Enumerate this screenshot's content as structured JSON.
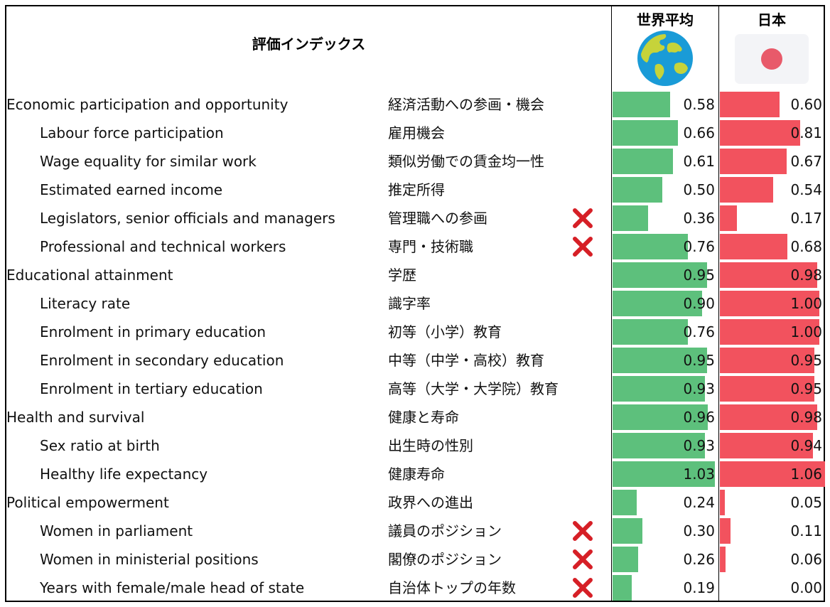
{
  "header": {
    "index_title": "評価インデックス",
    "world_label": "世界平均",
    "japan_label": "日本",
    "world_icon": "globe-icon",
    "japan_icon": "japan-flag-icon"
  },
  "colors": {
    "world": "#5dc07c",
    "japan": "#f2525e",
    "flag_circle": "#e85a6a",
    "x_mark": "#d61f26",
    "category_bg": "#efefef"
  },
  "chart_data": {
    "type": "table",
    "bar_max": 1.06,
    "columns": [
      "世界平均",
      "日本"
    ],
    "rows": [
      {
        "kind": "category",
        "en": "Economic participation and opportunity",
        "jp": "経済活動への参画・機会",
        "world": 0.58,
        "japan": 0.6,
        "flag": false
      },
      {
        "kind": "sub",
        "en": "Labour force participation",
        "jp": "雇用機会",
        "world": 0.66,
        "japan": 0.81,
        "flag": false
      },
      {
        "kind": "sub",
        "en": "Wage equality for similar work",
        "jp": "類似労働での賃金均一性",
        "world": 0.61,
        "japan": 0.67,
        "flag": false
      },
      {
        "kind": "sub",
        "en": "Estimated earned income",
        "jp": "推定所得",
        "world": 0.5,
        "japan": 0.54,
        "flag": false
      },
      {
        "kind": "sub",
        "en": "Legislators, senior officials and managers",
        "jp": "管理職への参画",
        "world": 0.36,
        "japan": 0.17,
        "flag": true
      },
      {
        "kind": "sub",
        "en": "Professional and technical workers",
        "jp": "専門・技術職",
        "world": 0.76,
        "japan": 0.68,
        "flag": true
      },
      {
        "kind": "category",
        "en": "Educational attainment",
        "jp": "学歴",
        "world": 0.95,
        "japan": 0.98,
        "flag": false
      },
      {
        "kind": "sub",
        "en": "Literacy rate",
        "jp": "識字率",
        "world": 0.9,
        "japan": 1.0,
        "flag": false
      },
      {
        "kind": "sub",
        "en": "Enrolment in primary education",
        "jp": "初等（小学）教育",
        "world": 0.76,
        "japan": 1.0,
        "flag": false
      },
      {
        "kind": "sub",
        "en": "Enrolment in secondary education",
        "jp": "中等（中学・高校）教育",
        "world": 0.95,
        "japan": 0.95,
        "flag": false
      },
      {
        "kind": "sub",
        "en": "Enrolment in tertiary education",
        "jp": "高等（大学・大学院）教育",
        "world": 0.93,
        "japan": 0.95,
        "flag": false
      },
      {
        "kind": "category",
        "en": "Health and survival",
        "jp": "健康と寿命",
        "world": 0.96,
        "japan": 0.98,
        "flag": false
      },
      {
        "kind": "sub",
        "en": "Sex ratio at birth",
        "jp": "出生時の性別",
        "world": 0.93,
        "japan": 0.94,
        "flag": false
      },
      {
        "kind": "sub",
        "en": "Healthy life expectancy",
        "jp": "健康寿命",
        "world": 1.03,
        "japan": 1.06,
        "flag": false
      },
      {
        "kind": "category",
        "en": "Political empowerment",
        "jp": "政界への進出",
        "world": 0.24,
        "japan": 0.05,
        "flag": false
      },
      {
        "kind": "sub",
        "en": "Women in parliament",
        "jp": "議員のポジション",
        "world": 0.3,
        "japan": 0.11,
        "flag": true
      },
      {
        "kind": "sub",
        "en": "Women in ministerial positions",
        "jp": "閣僚のポジション",
        "world": 0.26,
        "japan": 0.06,
        "flag": true
      },
      {
        "kind": "sub",
        "en": "Years with female/male head of state",
        "jp": "自治体トップの年数",
        "world": 0.19,
        "japan": 0.0,
        "flag": true
      }
    ]
  }
}
